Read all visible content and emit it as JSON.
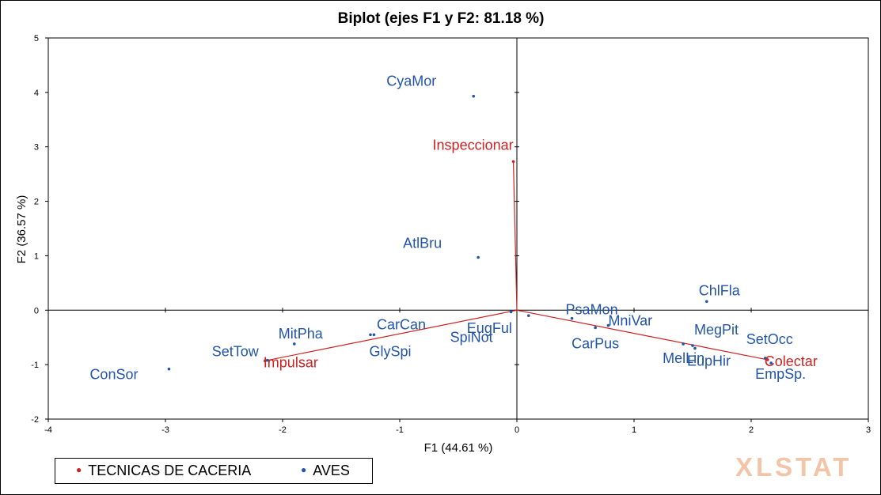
{
  "chart_data": {
    "type": "scatter",
    "title": "Biplot (ejes F1 y F2: 81.18 %)",
    "xlabel": "F1 (44.61 %)",
    "ylabel": "F2 (36.57 %)",
    "xlim": [
      -4,
      3
    ],
    "ylim": [
      -2,
      5
    ],
    "xticks": [
      "-4",
      "-3",
      "-2",
      "-1",
      "0",
      "1",
      "2",
      "3"
    ],
    "yticks": [
      "-2",
      "-1",
      "0",
      "1",
      "2",
      "3",
      "4",
      "5"
    ],
    "grid": false,
    "legend_position": "bottom-left",
    "series": [
      {
        "name": "TECNICAS DE CACERIA",
        "color": "#cc2222",
        "vectors": true,
        "points": [
          {
            "label": "Inspeccionar",
            "x": -0.03,
            "y": 2.73
          },
          {
            "label": "Impulsar",
            "x": -2.15,
            "y": -0.93
          },
          {
            "label": "Colectar",
            "x": 2.14,
            "y": -0.91
          }
        ]
      },
      {
        "name": "AVES",
        "color": "#2255aa",
        "points": [
          {
            "label": "CyaMor",
            "x": -0.37,
            "y": 3.93
          },
          {
            "label": "AtlBru",
            "x": -0.33,
            "y": 0.97
          },
          {
            "label": "ChlFla",
            "x": 1.62,
            "y": 0.16
          },
          {
            "label": "PsaMon",
            "x": 0.47,
            "y": -0.15
          },
          {
            "label": "EugFul",
            "x": 0.1,
            "y": -0.1
          },
          {
            "label": "CarCan",
            "x": -1.25,
            "y": -0.45
          },
          {
            "label": "MitPha",
            "x": -1.9,
            "y": -0.62
          },
          {
            "label": "SetTow",
            "x": -2.13,
            "y": -0.92
          },
          {
            "label": "ConSor",
            "x": -2.97,
            "y": -1.08
          },
          {
            "label": "GlySpi",
            "x": -1.22,
            "y": -0.45
          },
          {
            "label": "SpiNot",
            "x": -0.05,
            "y": -0.03
          },
          {
            "label": "CarPus",
            "x": 0.67,
            "y": -0.32
          },
          {
            "label": "MniVar",
            "x": 0.78,
            "y": -0.28
          },
          {
            "label": "MelLin",
            "x": 1.42,
            "y": -0.62
          },
          {
            "label": "MegPit",
            "x": 1.5,
            "y": -0.65
          },
          {
            "label": "EupHir",
            "x": 1.52,
            "y": -0.7
          },
          {
            "label": "SetOcc",
            "x": 2.12,
            "y": -0.88
          },
          {
            "label": "EmpSp.",
            "x": 2.17,
            "y": -0.97
          }
        ]
      }
    ]
  },
  "legend": {
    "items": [
      {
        "label": "TECNICAS DE CACERIA",
        "color": "#cc2222"
      },
      {
        "label": "AVES",
        "color": "#2255aa"
      }
    ]
  },
  "watermark": "XLSTAT"
}
